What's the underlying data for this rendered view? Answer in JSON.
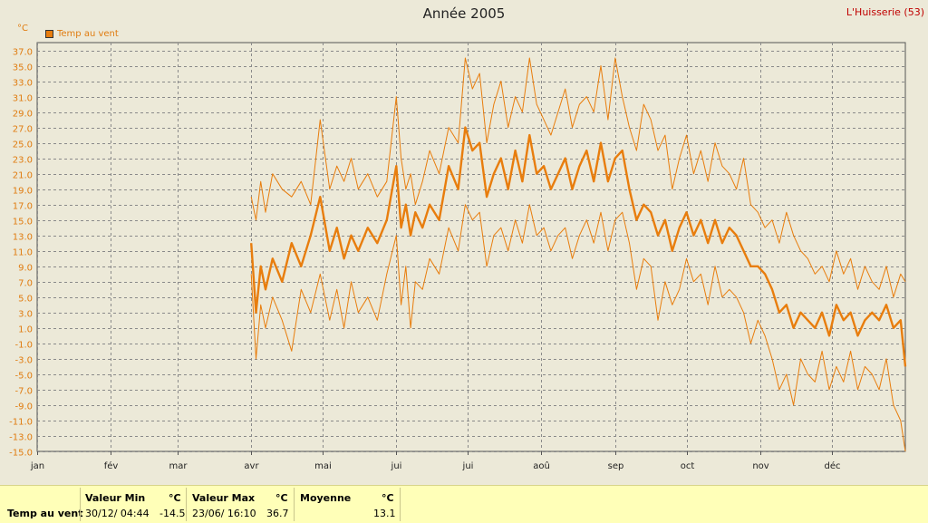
{
  "header": {
    "title": "Année 2005",
    "station": "L'Huisserie (53)",
    "unit": "°C"
  },
  "legend": {
    "label": "Temp au vent",
    "color": "#E87D0D"
  },
  "colors": {
    "series": "#E87D0D",
    "grid": "#888888",
    "background": "#ECE9D8",
    "stats_bg": "#FFFFB8"
  },
  "chart_data": {
    "type": "line",
    "title": "Année 2005",
    "ylabel": "°C",
    "ylim": [
      -15,
      38
    ],
    "grid": true,
    "legend_position": "top-left",
    "y_ticks": [
      "37.0",
      "35.0",
      "33.0",
      "31.0",
      "29.0",
      "27.0",
      "25.0",
      "23.0",
      "21.0",
      "19.0",
      "17.0",
      "15.0",
      "13.0",
      "11.0",
      "9.0",
      "7.0",
      "5.0",
      "3.0",
      "1.0",
      "-1.0",
      "-3.0",
      "-5.0",
      "-7.0",
      "-9.0",
      "-11.0",
      "-13.0",
      "-15.0"
    ],
    "x_ticks": [
      {
        "label": "jan",
        "day": 1
      },
      {
        "label": "fév",
        "day": 32
      },
      {
        "label": "mar",
        "day": 60
      },
      {
        "label": "avr",
        "day": 91
      },
      {
        "label": "mai",
        "day": 121
      },
      {
        "label": "jui",
        "day": 152
      },
      {
        "label": "jui",
        "day": 182
      },
      {
        "label": "aoû",
        "day": 213
      },
      {
        "label": "sep",
        "day": 244
      },
      {
        "label": "oct",
        "day": 274
      },
      {
        "label": "nov",
        "day": 305
      },
      {
        "label": "déc",
        "day": 335
      }
    ],
    "x_range_days": [
      1,
      366
    ],
    "series": [
      {
        "name": "Temp au vent",
        "role": "max",
        "x_day": [
          91,
          93,
          95,
          97,
          100,
          104,
          108,
          112,
          116,
          120,
          124,
          127,
          130,
          133,
          136,
          140,
          144,
          148,
          152,
          154,
          156,
          158,
          160,
          163,
          166,
          170,
          174,
          178,
          181,
          184,
          187,
          190,
          193,
          196,
          199,
          202,
          205,
          208,
          211,
          214,
          217,
          220,
          223,
          226,
          229,
          232,
          235,
          238,
          241,
          244,
          247,
          250,
          253,
          256,
          259,
          262,
          265,
          268,
          271,
          274,
          277,
          280,
          283,
          286,
          289,
          292,
          295,
          298,
          301,
          304,
          307,
          310,
          313,
          316,
          319,
          322,
          325,
          328,
          331,
          334,
          337,
          340,
          343,
          346,
          349,
          352,
          355,
          358,
          361,
          364,
          366
        ],
        "values": [
          18,
          15,
          20,
          16,
          21,
          19,
          18,
          20,
          17,
          28,
          19,
          22,
          20,
          23,
          19,
          21,
          18,
          20,
          31,
          23,
          19,
          21,
          17,
          20,
          24,
          21,
          27,
          25,
          36,
          32,
          34,
          25,
          30,
          33,
          27,
          31,
          29,
          36,
          30,
          28,
          26,
          29,
          32,
          27,
          30,
          31,
          29,
          35,
          28,
          36,
          31,
          27,
          24,
          30,
          28,
          24,
          26,
          19,
          23,
          26,
          21,
          24,
          20,
          25,
          22,
          21,
          19,
          23,
          17,
          16,
          14,
          15,
          12,
          16,
          13,
          11,
          10,
          8,
          9,
          7,
          11,
          8,
          10,
          6,
          9,
          7,
          6,
          9,
          5,
          8,
          7
        ]
      },
      {
        "name": "Temp au vent",
        "role": "mean",
        "x_day": [
          91,
          93,
          95,
          97,
          100,
          104,
          108,
          112,
          116,
          120,
          124,
          127,
          130,
          133,
          136,
          140,
          144,
          148,
          152,
          154,
          156,
          158,
          160,
          163,
          166,
          170,
          174,
          178,
          181,
          184,
          187,
          190,
          193,
          196,
          199,
          202,
          205,
          208,
          211,
          214,
          217,
          220,
          223,
          226,
          229,
          232,
          235,
          238,
          241,
          244,
          247,
          250,
          253,
          256,
          259,
          262,
          265,
          268,
          271,
          274,
          277,
          280,
          283,
          286,
          289,
          292,
          295,
          298,
          301,
          304,
          307,
          310,
          313,
          316,
          319,
          322,
          325,
          328,
          331,
          334,
          337,
          340,
          343,
          346,
          349,
          352,
          355,
          358,
          361,
          364,
          366
        ],
        "values": [
          12,
          3,
          9,
          6,
          10,
          7,
          12,
          9,
          13,
          18,
          11,
          14,
          10,
          13,
          11,
          14,
          12,
          15,
          22,
          14,
          17,
          13,
          16,
          14,
          17,
          15,
          22,
          19,
          27,
          24,
          25,
          18,
          21,
          23,
          19,
          24,
          20,
          26,
          21,
          22,
          19,
          21,
          23,
          19,
          22,
          24,
          20,
          25,
          20,
          23,
          24,
          19,
          15,
          17,
          16,
          13,
          15,
          11,
          14,
          16,
          13,
          15,
          12,
          15,
          12,
          14,
          13,
          11,
          9,
          9,
          8,
          6,
          3,
          4,
          1,
          3,
          2,
          1,
          3,
          0,
          4,
          2,
          3,
          0,
          2,
          3,
          2,
          4,
          1,
          2,
          -4
        ]
      },
      {
        "name": "Temp au vent",
        "role": "min",
        "x_day": [
          91,
          93,
          95,
          97,
          100,
          104,
          108,
          112,
          116,
          120,
          124,
          127,
          130,
          133,
          136,
          140,
          144,
          148,
          152,
          154,
          156,
          158,
          160,
          163,
          166,
          170,
          174,
          178,
          181,
          184,
          187,
          190,
          193,
          196,
          199,
          202,
          205,
          208,
          211,
          214,
          217,
          220,
          223,
          226,
          229,
          232,
          235,
          238,
          241,
          244,
          247,
          250,
          253,
          256,
          259,
          262,
          265,
          268,
          271,
          274,
          277,
          280,
          283,
          286,
          289,
          292,
          295,
          298,
          301,
          304,
          307,
          310,
          313,
          316,
          319,
          322,
          325,
          328,
          331,
          334,
          337,
          340,
          343,
          346,
          349,
          352,
          355,
          358,
          361,
          364,
          366
        ],
        "values": [
          8,
          -3,
          4,
          1,
          5,
          2,
          -2,
          6,
          3,
          8,
          2,
          6,
          1,
          7,
          3,
          5,
          2,
          8,
          13,
          4,
          9,
          1,
          7,
          6,
          10,
          8,
          14,
          11,
          17,
          15,
          16,
          9,
          13,
          14,
          11,
          15,
          12,
          17,
          13,
          14,
          11,
          13,
          14,
          10,
          13,
          15,
          12,
          16,
          11,
          15,
          16,
          12,
          6,
          10,
          9,
          2,
          7,
          4,
          6,
          10,
          7,
          8,
          4,
          9,
          5,
          6,
          5,
          3,
          -1,
          2,
          0,
          -3,
          -7,
          -5,
          -9,
          -3,
          -5,
          -6,
          -2,
          -7,
          -4,
          -6,
          -2,
          -7,
          -4,
          -5,
          -7,
          -3,
          -9,
          -11,
          -15
        ]
      }
    ]
  },
  "stats": {
    "row_label": "Temp au vent",
    "min": {
      "header": "Valeur Min",
      "unit": "°C",
      "datetime": "30/12/  04:44",
      "value": "-14.5"
    },
    "max": {
      "header": "Valeur Max",
      "unit": "°C",
      "datetime": "23/06/  16:10",
      "value": "36.7"
    },
    "mean": {
      "header": "Moyenne",
      "unit": "°C",
      "value": "13.1"
    }
  }
}
